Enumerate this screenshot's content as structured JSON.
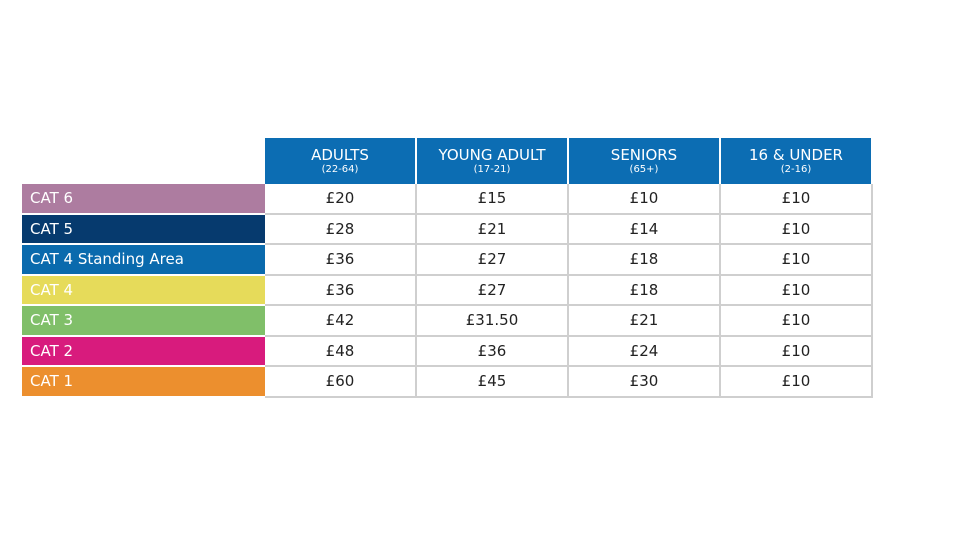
{
  "table": {
    "columns": [
      {
        "title": "ADULTS",
        "subtitle": "(22-64)"
      },
      {
        "title": "YOUNG ADULT",
        "subtitle": "(17-21)"
      },
      {
        "title": "SENIORS",
        "subtitle": "(65+)"
      },
      {
        "title": "16 & UNDER",
        "subtitle": "(2-16)"
      }
    ],
    "header_color": "#0c6db3",
    "rows": [
      {
        "label": "CAT 6",
        "color": "#ad7ca0",
        "prices": [
          "£20",
          "£15",
          "£10",
          "£10"
        ]
      },
      {
        "label": "CAT 5",
        "color": "#063a6e",
        "prices": [
          "£28",
          "£21",
          "£14",
          "£10"
        ]
      },
      {
        "label": "CAT 4 Standing Area",
        "color": "#0a6aad",
        "prices": [
          "£36",
          "£27",
          "£18",
          "£10"
        ]
      },
      {
        "label": "CAT 4",
        "color": "#e6db5a",
        "prices": [
          "£36",
          "£27",
          "£18",
          "£10"
        ]
      },
      {
        "label": "CAT 3",
        "color": "#80bf69",
        "prices": [
          "£42",
          "£31.50",
          "£21",
          "£10"
        ]
      },
      {
        "label": "CAT 2",
        "color": "#d81b7d",
        "prices": [
          "£48",
          "£36",
          "£24",
          "£10"
        ]
      },
      {
        "label": "CAT 1",
        "color": "#ec8f2e",
        "prices": [
          "£60",
          "£45",
          "£30",
          "£10"
        ]
      }
    ]
  }
}
